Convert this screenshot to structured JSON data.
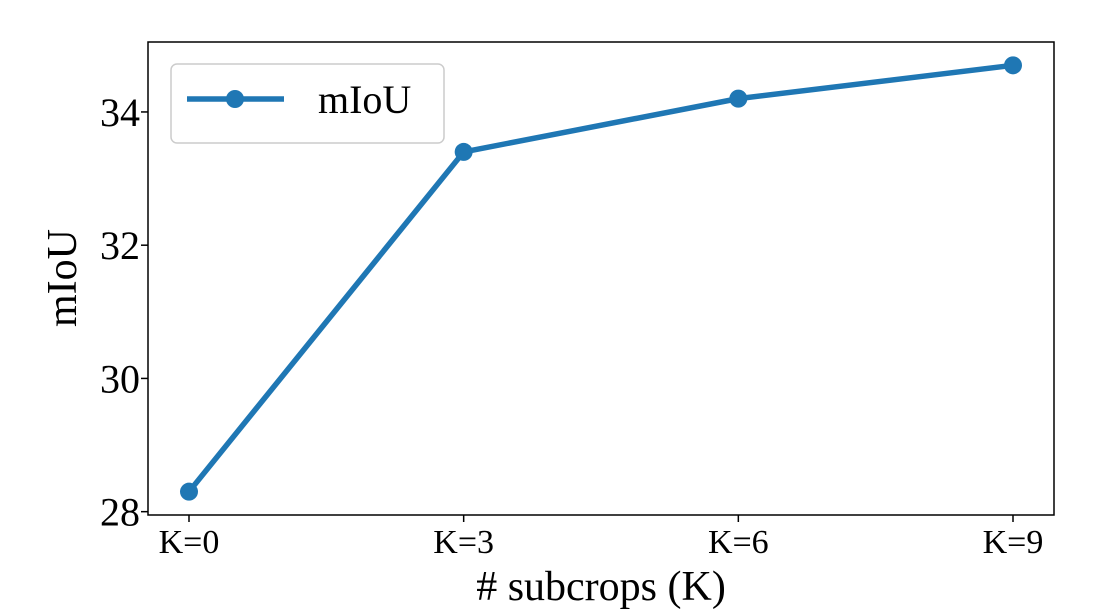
{
  "chart_data": {
    "type": "line",
    "title": "",
    "xlabel": "# subcrops (K)",
    "ylabel": "mIoU",
    "categories": [
      "K=0",
      "K=3",
      "K=6",
      "K=9"
    ],
    "series": [
      {
        "name": "mIoU",
        "values": [
          28.3,
          33.4,
          34.2,
          34.7
        ],
        "color": "#1f77b4"
      }
    ],
    "ylim": [
      27.95,
      35.05
    ],
    "yticks": [
      28,
      30,
      32,
      34
    ],
    "ytick_labels": [
      "28",
      "30",
      "32",
      "34"
    ],
    "grid": false,
    "legend": {
      "position": "top-left",
      "entries": [
        "mIoU"
      ]
    }
  }
}
